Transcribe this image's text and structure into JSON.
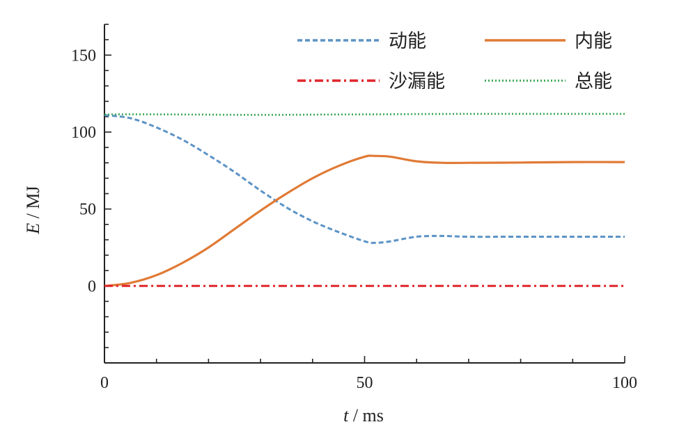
{
  "chart_data": {
    "type": "line",
    "xlabel": {
      "var": "t",
      "unit": " / ms"
    },
    "ylabel": {
      "var": "E",
      "unit": " / MJ"
    },
    "xlim": [
      0,
      100
    ],
    "ylim": [
      -50,
      170
    ],
    "xticks_major": [
      0,
      50,
      100
    ],
    "xticks_minor": [
      10,
      20,
      30,
      40,
      60,
      70,
      80,
      90
    ],
    "yticks_major": [
      0,
      50,
      100,
      150
    ],
    "yticks_minor_step": 10,
    "grid": false,
    "legend": {
      "position": "top-right",
      "columns": 2
    },
    "series": [
      {
        "name": "动能",
        "style": "dashed",
        "color": "#5b93c6",
        "x": [
          0,
          5,
          10,
          15,
          20,
          25,
          30,
          35,
          40,
          45,
          50,
          52,
          55,
          60,
          65,
          70,
          80,
          90,
          100
        ],
        "y": [
          111,
          109,
          103,
          95,
          85,
          74,
          62,
          51,
          42,
          35,
          29,
          28,
          29,
          32,
          32.5,
          32,
          32,
          32,
          32
        ]
      },
      {
        "name": "内能",
        "style": "solid",
        "color": "#e07a35",
        "x": [
          0,
          5,
          10,
          15,
          20,
          25,
          30,
          35,
          40,
          45,
          50,
          52,
          55,
          60,
          65,
          70,
          80,
          90,
          100
        ],
        "y": [
          0,
          2,
          7,
          15,
          25,
          37,
          49,
          60,
          70,
          78,
          84,
          84.5,
          84,
          81,
          80,
          80,
          80.2,
          80.5,
          80.5
        ]
      },
      {
        "name": "沙漏能",
        "style": "dashdot",
        "color": "#e0252b",
        "x": [
          0,
          10,
          20,
          30,
          40,
          50,
          60,
          70,
          80,
          90,
          100
        ],
        "y": [
          0,
          0,
          0,
          0,
          0,
          0,
          0,
          0,
          0,
          0,
          0
        ]
      },
      {
        "name": "总能",
        "style": "dotted",
        "color": "#3aa653",
        "x": [
          0,
          10,
          20,
          30,
          40,
          50,
          60,
          70,
          80,
          90,
          100
        ],
        "y": [
          111.5,
          111.5,
          111.3,
          111.2,
          111.3,
          111.5,
          111.7,
          111.8,
          111.8,
          111.8,
          111.8
        ]
      }
    ]
  }
}
